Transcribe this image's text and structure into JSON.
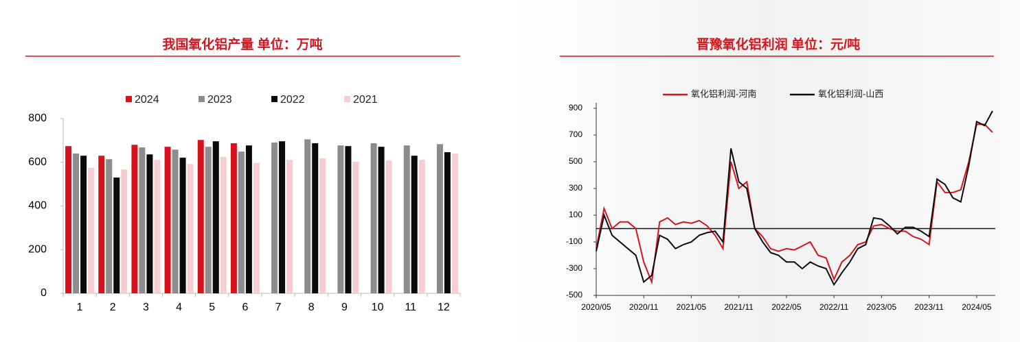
{
  "chart_data": [
    {
      "type": "bar",
      "title": "我国氧化铝产量      单位：万吨",
      "categories": [
        "1",
        "2",
        "3",
        "4",
        "5",
        "6",
        "7",
        "8",
        "9",
        "10",
        "11",
        "12"
      ],
      "series": [
        {
          "name": "2024",
          "color": "#d7141d",
          "values": [
            674,
            630,
            680,
            671,
            702,
            687,
            null,
            null,
            null,
            null,
            null,
            null
          ]
        },
        {
          "name": "2023",
          "color": "#8c8c8c",
          "values": [
            640,
            614,
            668,
            658,
            671,
            649,
            690,
            705,
            677,
            687,
            677,
            683
          ]
        },
        {
          "name": "2022",
          "color": "#0a0a0a",
          "values": [
            630,
            530,
            636,
            621,
            696,
            677,
            696,
            687,
            674,
            671,
            630,
            646
          ]
        },
        {
          "name": "2021",
          "color": "#f6cdd0",
          "values": [
            574,
            567,
            611,
            592,
            624,
            596,
            611,
            618,
            602,
            608,
            611,
            640
          ]
        }
      ],
      "ylim": [
        0,
        800
      ],
      "yticks": [
        0,
        200,
        400,
        600,
        800
      ]
    },
    {
      "type": "line",
      "title": "晋豫氧化铝利润      单位：元/吨",
      "x": [
        "2020/05",
        "2020/06",
        "2020/07",
        "2020/08",
        "2020/09",
        "2020/10",
        "2020/11",
        "2020/12",
        "2021/01",
        "2021/02",
        "2021/03",
        "2021/04",
        "2021/05",
        "2021/06",
        "2021/07",
        "2021/08",
        "2021/09",
        "2021/10",
        "2021/11",
        "2021/12",
        "2022/01",
        "2022/02",
        "2022/03",
        "2022/04",
        "2022/05",
        "2022/06",
        "2022/07",
        "2022/08",
        "2022/09",
        "2022/10",
        "2022/11",
        "2022/12",
        "2023/01",
        "2023/02",
        "2023/03",
        "2023/04",
        "2023/05",
        "2023/06",
        "2023/07",
        "2023/08",
        "2023/09",
        "2023/10",
        "2023/11",
        "2023/12",
        "2024/01",
        "2024/02",
        "2024/03",
        "2024/04",
        "2024/05",
        "2024/06",
        "2024/07"
      ],
      "xticks": [
        "2020/05",
        "2020/11",
        "2021/05",
        "2021/11",
        "2022/05",
        "2022/11",
        "2023/05",
        "2023/11",
        "2024/05"
      ],
      "series": [
        {
          "name": "氧化铝利润-河南",
          "color": "#d7141d",
          "values": [
            -150,
            150,
            0,
            50,
            50,
            0,
            -250,
            -400,
            50,
            80,
            30,
            50,
            40,
            60,
            20,
            -50,
            -150,
            500,
            300,
            350,
            0,
            -60,
            -150,
            -170,
            -150,
            -160,
            -130,
            -100,
            -200,
            -220,
            -380,
            -250,
            -200,
            -120,
            -100,
            20,
            30,
            0,
            -20,
            -20,
            -60,
            -80,
            -120,
            350,
            270,
            270,
            290,
            500,
            780,
            780,
            720
          ]
        },
        {
          "name": "氧化铝利润-山西",
          "color": "#0a0a0a",
          "values": [
            -170,
            100,
            -50,
            -100,
            -150,
            -200,
            -400,
            -350,
            -50,
            -80,
            -150,
            -120,
            -100,
            -50,
            -30,
            -20,
            -100,
            600,
            350,
            300,
            0,
            -100,
            -180,
            -200,
            -250,
            -250,
            -300,
            -250,
            -280,
            -300,
            -420,
            -330,
            -250,
            -150,
            -120,
            80,
            70,
            20,
            -40,
            10,
            10,
            -20,
            -60,
            370,
            330,
            230,
            200,
            470,
            800,
            770,
            880
          ]
        }
      ],
      "reference_line": 0,
      "ylim": [
        -500,
        900
      ],
      "yticks": [
        -500,
        -300,
        -100,
        100,
        300,
        500,
        700,
        900
      ]
    }
  ]
}
